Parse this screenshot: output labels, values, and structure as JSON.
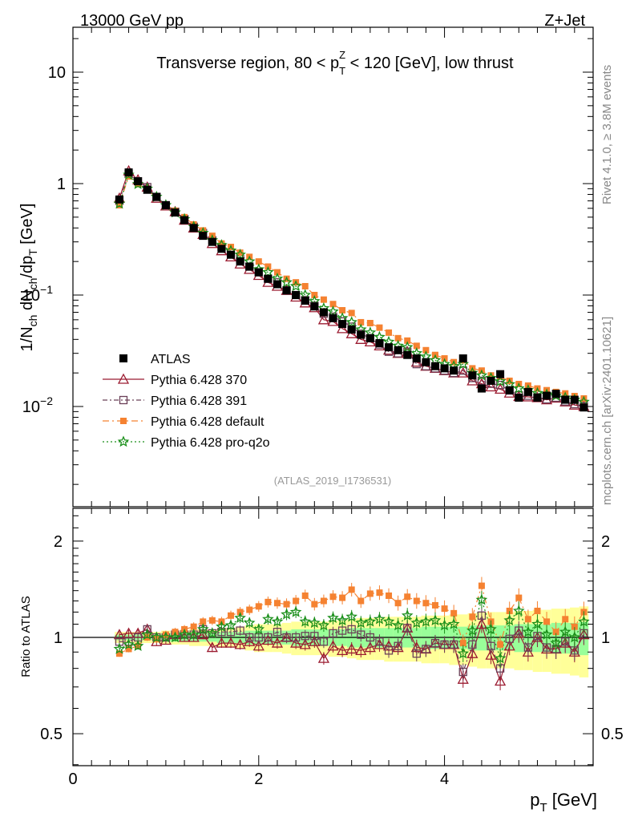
{
  "header": {
    "left": "13000 GeV pp",
    "right": "Z+Jet",
    "title_pre": "Transverse region, 80 < p",
    "title_sub": "T",
    "title_sup": "Z",
    "title_post": " < 120 [GeV], low thrust",
    "analysis_id": "(ATLAS_2019_I1736531)",
    "side_rivet": "Rivet 4.1.0, ≥ 3.8M events",
    "side_mcplots": "mcplots.cern.ch [arXiv:2401.10621]"
  },
  "colors": {
    "atlas": "#000000",
    "p370": "#9b1b30",
    "p391": "#6b4058",
    "pdefault": "#f58231",
    "pq2o": "#1a8f1a",
    "band_inner": "#99ff99",
    "band_outer": "#ffff99"
  },
  "chart_data": [
    {
      "type": "scatter",
      "name": "main",
      "ylabel": "1/N_ch dN_ch/dp_T [GeV]",
      "yscale": "log",
      "ylim": [
        0.001,
        25
      ],
      "xlim": [
        0,
        5.6
      ],
      "ytick_labels": [
        "10",
        "1",
        "10^-1",
        "10^-2"
      ],
      "x": [
        0.5,
        0.6,
        0.7,
        0.8,
        0.9,
        1.0,
        1.1,
        1.2,
        1.3,
        1.4,
        1.5,
        1.6,
        1.7,
        1.8,
        1.9,
        2.0,
        2.1,
        2.2,
        2.3,
        2.4,
        2.5,
        2.6,
        2.7,
        2.8,
        2.9,
        3.0,
        3.1,
        3.2,
        3.3,
        3.4,
        3.5,
        3.6,
        3.7,
        3.8,
        3.9,
        4.0,
        4.1,
        4.2,
        4.3,
        4.4,
        4.5,
        4.6,
        4.7,
        4.8,
        4.9,
        5.0,
        5.1,
        5.2,
        5.3,
        5.4,
        5.5
      ],
      "series": [
        {
          "name": "ATLAS",
          "marker": "square",
          "values": [
            0.72,
            1.26,
            1.05,
            0.88,
            0.76,
            0.64,
            0.55,
            0.47,
            0.4,
            0.34,
            0.3,
            0.26,
            0.23,
            0.2,
            0.18,
            0.16,
            0.14,
            0.125,
            0.11,
            0.1,
            0.089,
            0.079,
            0.07,
            0.062,
            0.055,
            0.049,
            0.044,
            0.041,
            0.037,
            0.034,
            0.032,
            0.029,
            0.027,
            0.025,
            0.023,
            0.022,
            0.021,
            0.027,
            0.019,
            0.0145,
            0.017,
            0.0195,
            0.014,
            0.012,
            0.0135,
            0.012,
            0.0125,
            0.013,
            0.0115,
            0.0115,
            0.0098
          ]
        },
        {
          "name": "Pythia 6.428 370",
          "marker": "triangle",
          "values": [
            0.74,
            1.3,
            1.08,
            0.93,
            0.74,
            0.63,
            0.56,
            0.47,
            0.4,
            0.35,
            0.29,
            0.25,
            0.22,
            0.19,
            0.17,
            0.15,
            0.13,
            0.12,
            0.11,
            0.096,
            0.085,
            0.077,
            0.06,
            0.058,
            0.05,
            0.045,
            0.04,
            0.038,
            0.035,
            0.032,
            0.03,
            0.031,
            0.025,
            0.023,
            0.022,
            0.021,
            0.02,
            0.02,
            0.017,
            0.016,
            0.015,
            0.0143,
            0.0132,
            0.0123,
            0.0122,
            0.012,
            0.0115,
            0.0119,
            0.011,
            0.0103,
            0.01
          ]
        },
        {
          "name": "Pythia 6.428 391",
          "marker": "opensquare",
          "values": [
            0.7,
            1.22,
            1.05,
            0.93,
            0.76,
            0.64,
            0.56,
            0.48,
            0.41,
            0.36,
            0.31,
            0.27,
            0.24,
            0.21,
            0.18,
            0.16,
            0.14,
            0.13,
            0.11,
            0.1,
            0.09,
            0.08,
            0.068,
            0.064,
            0.058,
            0.052,
            0.045,
            0.041,
            0.036,
            0.031,
            0.03,
            0.031,
            0.024,
            0.023,
            0.022,
            0.021,
            0.02,
            0.021,
            0.018,
            0.017,
            0.016,
            0.0156,
            0.0139,
            0.0126,
            0.0125,
            0.0121,
            0.0116,
            0.012,
            0.0111,
            0.0105,
            0.0101
          ]
        },
        {
          "name": "Pythia 6.428 default",
          "marker": "smallsquare",
          "values": [
            0.64,
            1.16,
            0.99,
            0.88,
            0.75,
            0.65,
            0.57,
            0.5,
            0.43,
            0.38,
            0.34,
            0.29,
            0.27,
            0.24,
            0.22,
            0.2,
            0.18,
            0.16,
            0.14,
            0.13,
            0.12,
            0.1,
            0.091,
            0.083,
            0.073,
            0.069,
            0.057,
            0.056,
            0.051,
            0.046,
            0.041,
            0.039,
            0.035,
            0.032,
            0.029,
            0.027,
            0.025,
            0.026,
            0.022,
            0.021,
            0.019,
            0.0185,
            0.017,
            0.0159,
            0.0154,
            0.0145,
            0.014,
            0.0135,
            0.0131,
            0.0124,
            0.0118
          ]
        },
        {
          "name": "Pythia 6.428 pro-q2o",
          "marker": "star",
          "values": [
            0.66,
            1.2,
            0.99,
            0.9,
            0.76,
            0.64,
            0.55,
            0.48,
            0.41,
            0.36,
            0.31,
            0.28,
            0.25,
            0.23,
            0.2,
            0.17,
            0.16,
            0.14,
            0.13,
            0.12,
            0.1,
            0.088,
            0.076,
            0.071,
            0.062,
            0.057,
            0.049,
            0.046,
            0.042,
            0.038,
            0.035,
            0.034,
            0.03,
            0.028,
            0.026,
            0.024,
            0.023,
            0.024,
            0.02,
            0.019,
            0.018,
            0.0168,
            0.0158,
            0.0145,
            0.014,
            0.0132,
            0.0128,
            0.0125,
            0.012,
            0.0115,
            0.011
          ]
        }
      ],
      "legend": [
        "ATLAS",
        "Pythia 6.428 370",
        "Pythia 6.428 391",
        "Pythia 6.428 default",
        "Pythia 6.428 pro-q2o"
      ],
      "legend_position": "lower-left"
    },
    {
      "type": "line",
      "name": "ratio",
      "xlabel": "p_T [GeV]",
      "ylabel": "Ratio to ATLAS",
      "ylim": [
        0.4,
        2.4
      ],
      "yscale": "log",
      "xlim": [
        0,
        5.6
      ],
      "xticks": [
        0,
        2,
        4
      ],
      "ytick_labels": [
        "0.5",
        "1",
        "2"
      ],
      "band_inner_halfwidth": [
        0.02,
        0.02,
        0.02,
        0.02,
        0.02,
        0.03,
        0.03,
        0.03,
        0.03,
        0.03,
        0.03,
        0.04,
        0.04,
        0.04,
        0.05,
        0.05,
        0.05,
        0.05,
        0.05,
        0.06,
        0.06,
        0.06,
        0.06,
        0.06,
        0.06,
        0.07,
        0.07,
        0.07,
        0.07,
        0.07,
        0.07,
        0.07,
        0.07,
        0.08,
        0.08,
        0.08,
        0.08,
        0.08,
        0.09,
        0.09,
        0.09,
        0.09,
        0.09,
        0.1,
        0.1,
        0.1,
        0.1,
        0.11,
        0.11,
        0.11,
        0.12
      ],
      "band_outer_halfwidth": [
        0.04,
        0.04,
        0.04,
        0.04,
        0.04,
        0.05,
        0.05,
        0.05,
        0.06,
        0.06,
        0.06,
        0.07,
        0.07,
        0.08,
        0.09,
        0.1,
        0.1,
        0.1,
        0.11,
        0.12,
        0.12,
        0.12,
        0.12,
        0.13,
        0.13,
        0.14,
        0.15,
        0.15,
        0.15,
        0.16,
        0.16,
        0.16,
        0.16,
        0.17,
        0.17,
        0.17,
        0.18,
        0.18,
        0.19,
        0.2,
        0.2,
        0.2,
        0.2,
        0.21,
        0.21,
        0.22,
        0.22,
        0.23,
        0.23,
        0.24,
        0.25
      ],
      "series": [
        {
          "name": "Pythia 6.428 370",
          "values": [
            1.02,
            1.03,
            1.03,
            1.06,
            0.97,
            0.98,
            1.02,
            1.0,
            1.0,
            1.02,
            0.93,
            0.96,
            0.96,
            0.95,
            0.97,
            0.94,
            0.98,
            0.96,
            1.0,
            0.96,
            0.95,
            0.97,
            0.86,
            0.94,
            0.91,
            0.92,
            0.91,
            0.93,
            0.95,
            0.94,
            0.93,
            1.07,
            0.93,
            0.92,
            0.96,
            0.95,
            0.95,
            0.74,
            0.89,
            1.1,
            0.88,
            0.73,
            0.94,
            1.03,
            0.9,
            1.0,
            0.92,
            0.92,
            0.96,
            0.9,
            1.02
          ]
        },
        {
          "name": "Pythia 6.428 391",
          "values": [
            0.97,
            0.97,
            1.0,
            1.06,
            1.0,
            1.0,
            1.02,
            1.02,
            1.02,
            1.06,
            1.03,
            1.04,
            1.04,
            1.05,
            1.0,
            1.0,
            1.0,
            1.04,
            1.0,
            1.0,
            1.01,
            1.01,
            0.97,
            1.03,
            1.05,
            1.06,
            1.02,
            1.0,
            0.97,
            0.91,
            0.94,
            1.07,
            0.89,
            0.92,
            0.96,
            0.95,
            0.95,
            0.78,
            0.95,
            1.17,
            0.94,
            0.8,
            0.99,
            1.05,
            0.93,
            1.01,
            0.93,
            0.92,
            0.97,
            0.91,
            1.03
          ]
        },
        {
          "name": "Pythia 6.428 default",
          "values": [
            0.89,
            0.92,
            0.94,
            1.0,
            0.99,
            1.02,
            1.04,
            1.06,
            1.08,
            1.12,
            1.13,
            1.12,
            1.17,
            1.2,
            1.22,
            1.25,
            1.29,
            1.28,
            1.27,
            1.3,
            1.35,
            1.27,
            1.3,
            1.34,
            1.33,
            1.41,
            1.3,
            1.37,
            1.38,
            1.35,
            1.28,
            1.34,
            1.3,
            1.28,
            1.26,
            1.23,
            1.19,
            0.96,
            1.16,
            1.45,
            1.12,
            0.95,
            1.21,
            1.33,
            1.14,
            1.21,
            1.12,
            1.04,
            1.14,
            1.08,
            1.2
          ]
        },
        {
          "name": "Pythia 6.428 pro-q2o",
          "values": [
            0.92,
            0.95,
            0.94,
            1.02,
            1.0,
            1.0,
            1.0,
            1.02,
            1.02,
            1.06,
            1.03,
            1.08,
            1.09,
            1.15,
            1.11,
            1.06,
            1.14,
            1.12,
            1.18,
            1.2,
            1.12,
            1.11,
            1.09,
            1.15,
            1.13,
            1.16,
            1.11,
            1.12,
            1.14,
            1.12,
            1.09,
            1.17,
            1.11,
            1.12,
            1.13,
            1.09,
            1.1,
            0.89,
            1.05,
            1.31,
            1.06,
            0.86,
            1.13,
            1.21,
            1.04,
            1.1,
            1.02,
            0.96,
            1.04,
            1.0,
            1.12
          ]
        }
      ]
    }
  ]
}
